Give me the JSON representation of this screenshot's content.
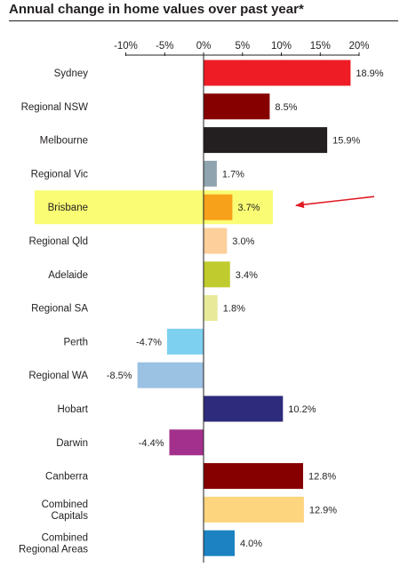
{
  "chart_data": {
    "type": "bar",
    "orientation": "horizontal",
    "title": "Annual change in home values over past year*",
    "xlim": [
      -10,
      20
    ],
    "x_ticks": [
      "-10%",
      "-5%",
      "0%",
      "5%",
      "10%",
      "15%",
      "20%"
    ],
    "grid": false,
    "categories": [
      "Sydney",
      "Regional NSW",
      "Melbourne",
      "Regional Vic",
      "Brisbane",
      "Regional Qld",
      "Adelaide",
      "Regional SA",
      "Perth",
      "Regional WA",
      "Hobart",
      "Darwin",
      "Canberra",
      "Combined Capitals",
      "Combined Regional Areas"
    ],
    "category_lines": [
      [
        "Sydney"
      ],
      [
        "Regional NSW"
      ],
      [
        "Melbourne"
      ],
      [
        "Regional Vic"
      ],
      [
        "Brisbane"
      ],
      [
        "Regional Qld"
      ],
      [
        "Adelaide"
      ],
      [
        "Regional SA"
      ],
      [
        "Perth"
      ],
      [
        "Regional WA"
      ],
      [
        "Hobart"
      ],
      [
        "Darwin"
      ],
      [
        "Canberra"
      ],
      [
        "Combined",
        "Capitals"
      ],
      [
        "Combined",
        "Regional Areas"
      ]
    ],
    "values": [
      18.9,
      8.5,
      15.9,
      1.7,
      3.7,
      3.0,
      3.4,
      1.8,
      -4.7,
      -8.5,
      10.2,
      -4.4,
      12.8,
      12.9,
      4.0
    ],
    "value_labels": [
      "18.9%",
      "8.5%",
      "15.9%",
      "1.7%",
      "3.7%",
      "3.0%",
      "3.4%",
      "1.8%",
      "-4.7%",
      "-8.5%",
      "10.2%",
      "-4.4%",
      "12.8%",
      "12.9%",
      "4.0%"
    ],
    "colors": [
      "#ee1c25",
      "#860000",
      "#231f20",
      "#8fa4ae",
      "#f7a11a",
      "#fdcf9a",
      "#c0cb2e",
      "#e8ea9a",
      "#7dd0f0",
      "#9bc1e3",
      "#2e2b7c",
      "#a3308c",
      "#860000",
      "#fdd57f",
      "#1c82c1"
    ],
    "highlight": {
      "category": "Brisbane",
      "color": "#fafd74"
    },
    "annotation": {
      "type": "arrow",
      "target": "Brisbane",
      "color": "#e01b24"
    }
  }
}
